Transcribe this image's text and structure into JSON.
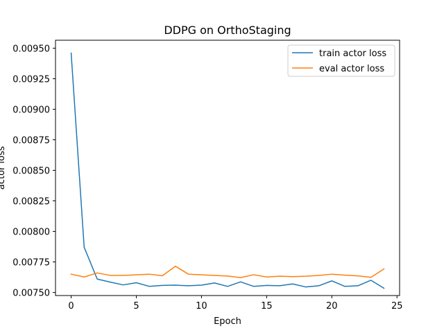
{
  "chart_data": {
    "type": "line",
    "title": "DDPG on OrthoStaging",
    "xlabel": "Epoch",
    "ylabel": "actor loss",
    "xlim": [
      -1.2,
      25.2
    ],
    "ylim": [
      0.007475,
      0.009565
    ],
    "xticks": [
      0,
      5,
      10,
      15,
      20,
      25
    ],
    "yticks": [
      0.0075,
      0.00775,
      0.008,
      0.00825,
      0.0085,
      0.00875,
      0.009,
      0.00925,
      0.0095
    ],
    "ytick_labels": [
      "0.00750",
      "0.00775",
      "0.00800",
      "0.00825",
      "0.00850",
      "0.00875",
      "0.00900",
      "0.00925",
      "0.00950"
    ],
    "legend_position": "top-right",
    "x": [
      0,
      1,
      2,
      3,
      4,
      5,
      6,
      7,
      8,
      9,
      10,
      11,
      12,
      13,
      14,
      15,
      16,
      17,
      18,
      19,
      20,
      21,
      22,
      23,
      24
    ],
    "series": [
      {
        "name": "train actor loss",
        "color": "#1f77b4",
        "values": [
          0.00946,
          0.00787,
          0.00761,
          0.007585,
          0.007562,
          0.00758,
          0.00755,
          0.007558,
          0.00756,
          0.007555,
          0.00756,
          0.007578,
          0.00755,
          0.007587,
          0.00755,
          0.007558,
          0.007555,
          0.00757,
          0.007545,
          0.007555,
          0.007595,
          0.00755,
          0.007555,
          0.0076,
          0.007535
        ]
      },
      {
        "name": "eval actor loss",
        "color": "#ff7f0e",
        "values": [
          0.00765,
          0.007627,
          0.00766,
          0.00764,
          0.00764,
          0.007645,
          0.00765,
          0.007637,
          0.007715,
          0.00765,
          0.007645,
          0.00764,
          0.007635,
          0.007622,
          0.007645,
          0.007627,
          0.007633,
          0.00763,
          0.007633,
          0.00764,
          0.00765,
          0.007642,
          0.007636,
          0.007624,
          0.007693
        ]
      }
    ]
  }
}
